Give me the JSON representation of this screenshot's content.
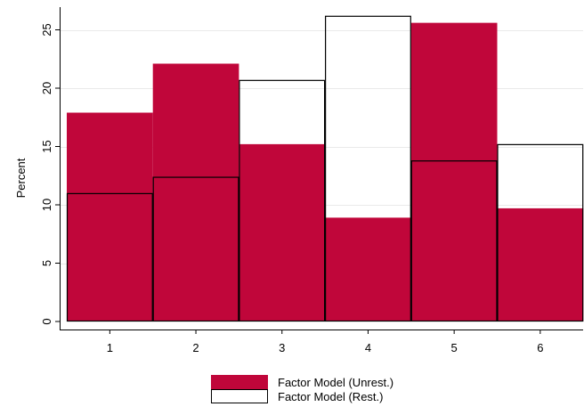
{
  "chart_data": {
    "type": "bar",
    "categories": [
      "1",
      "2",
      "3",
      "4",
      "5",
      "6"
    ],
    "series": [
      {
        "name": "Factor Model (Unrest.)",
        "values": [
          17.9,
          22.1,
          15.2,
          8.9,
          25.6,
          9.7
        ],
        "color": "#c0063a"
      },
      {
        "name": "Factor Model (Rest.)",
        "values": [
          11.0,
          12.4,
          20.7,
          26.2,
          13.8,
          15.2
        ],
        "color": "none"
      }
    ],
    "ylabel": "Percent",
    "xlabel": "",
    "ylim": [
      0,
      27
    ],
    "yticks": [
      0,
      5,
      10,
      15,
      20,
      25
    ],
    "grid": true,
    "legend_position": "bottom"
  }
}
